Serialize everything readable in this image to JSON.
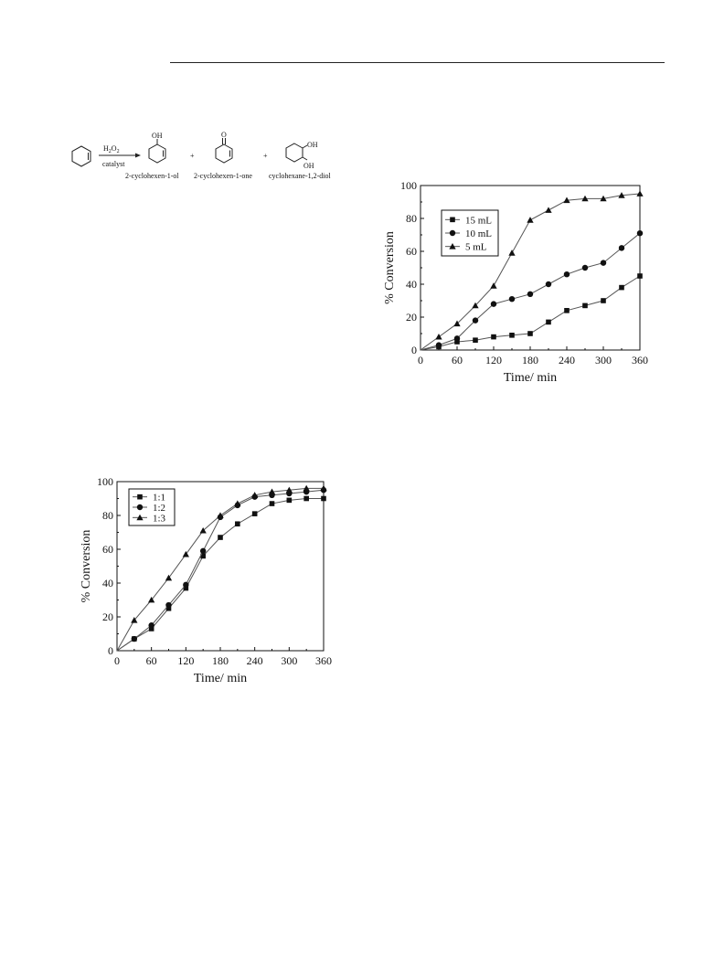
{
  "scheme": {
    "reagent": "H",
    "reagent_sub": "2",
    "reagent_mid": "O",
    "reagent_sub2": "2",
    "conditions": "catalyst",
    "oh_label": "OH",
    "o_label": "O",
    "diol_oh1": "OH",
    "diol_oh2": "OH",
    "plus": "+",
    "products": [
      "2-cyclohexen-1-ol",
      "2-cyclohexen-1-one",
      "cyclohexane-1,2-diol"
    ]
  },
  "chart_data": [
    {
      "type": "line",
      "title": "",
      "xlabel": "Time/ min",
      "ylabel": "% Conversion",
      "xlim": [
        0,
        360
      ],
      "ylim": [
        0,
        100
      ],
      "xticks": [
        "0",
        "60",
        "120",
        "180",
        "240",
        "300",
        "360"
      ],
      "yticks": [
        "0",
        "20",
        "40",
        "60",
        "80",
        "100"
      ],
      "legend_position": "top-left",
      "grid": false,
      "x": [
        0,
        30,
        60,
        90,
        120,
        150,
        180,
        210,
        240,
        270,
        300,
        330,
        360
      ],
      "series": [
        {
          "name": "15 mL",
          "marker": "square",
          "values": [
            0,
            2,
            5,
            6,
            8,
            9,
            10,
            17,
            24,
            27,
            30,
            38,
            45
          ]
        },
        {
          "name": "10 mL",
          "marker": "circle",
          "values": [
            0,
            3,
            7,
            18,
            28,
            31,
            34,
            40,
            46,
            50,
            53,
            62,
            71
          ]
        },
        {
          "name": "5 mL",
          "marker": "triangle",
          "values": [
            0,
            8,
            16,
            27,
            39,
            59,
            79,
            85,
            91,
            92,
            92,
            94,
            95
          ]
        }
      ]
    },
    {
      "type": "line",
      "title": "",
      "xlabel": "Time/ min",
      "ylabel": "% Conversion",
      "xlim": [
        0,
        360
      ],
      "ylim": [
        0,
        100
      ],
      "xticks": [
        "0",
        "60",
        "120",
        "180",
        "240",
        "300",
        "360"
      ],
      "yticks": [
        "0",
        "20",
        "40",
        "60",
        "80",
        "100"
      ],
      "legend_position": "top-left",
      "grid": false,
      "x": [
        0,
        30,
        60,
        90,
        120,
        150,
        180,
        210,
        240,
        270,
        300,
        330,
        360
      ],
      "series": [
        {
          "name": "1:1",
          "marker": "square",
          "values": [
            0,
            7,
            13,
            25,
            37,
            56,
            67,
            75,
            81,
            87,
            89,
            90,
            90
          ]
        },
        {
          "name": "1:2",
          "marker": "circle",
          "values": [
            0,
            7,
            15,
            27,
            39,
            59,
            79,
            86,
            91,
            92,
            93,
            94,
            95
          ]
        },
        {
          "name": "1:3",
          "marker": "triangle",
          "values": [
            0,
            18,
            30,
            43,
            57,
            71,
            80,
            87,
            92,
            94,
            95,
            96,
            96
          ]
        }
      ]
    }
  ]
}
